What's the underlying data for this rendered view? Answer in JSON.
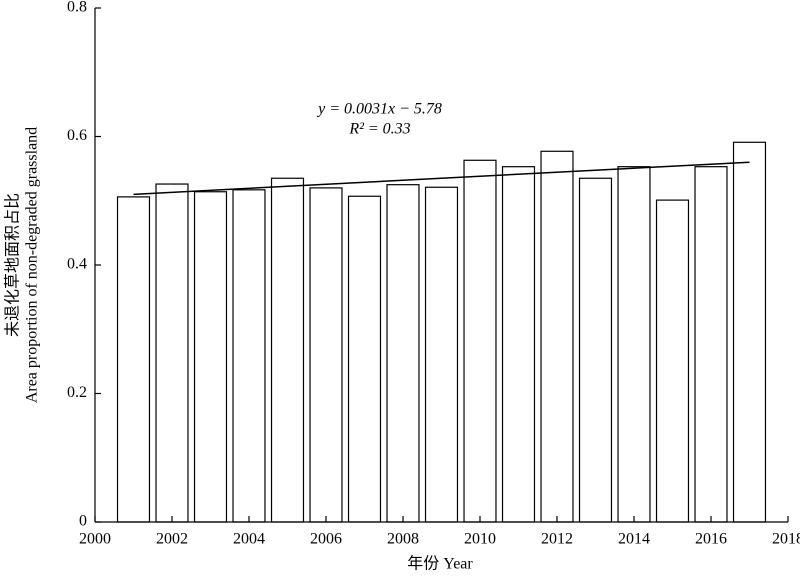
{
  "chart_data": {
    "type": "bar",
    "x": [
      2001,
      2002,
      2003,
      2004,
      2005,
      2006,
      2007,
      2008,
      2009,
      2010,
      2011,
      2012,
      2013,
      2014,
      2015,
      2016,
      2017
    ],
    "values": [
      0.506,
      0.526,
      0.514,
      0.517,
      0.535,
      0.52,
      0.507,
      0.525,
      0.521,
      0.563,
      0.553,
      0.577,
      0.535,
      0.553,
      0.501,
      0.553,
      0.591
    ],
    "color": "#ffffff",
    "edgecolor": "#000000",
    "trend": {
      "x": [
        2001,
        2017
      ],
      "values": [
        0.51,
        0.56
      ]
    },
    "annotations": [
      "y = 0.0031x − 5.78",
      "R² = 0.33"
    ],
    "xlabel": "年份 Year",
    "ylabel": [
      "未退化草地面积占比",
      "Area proportion of non-degraded grassland"
    ],
    "xlim": [
      2000,
      2018
    ],
    "xticks": [
      2000,
      2002,
      2004,
      2006,
      2008,
      2010,
      2012,
      2014,
      2016,
      2018
    ],
    "ylim": [
      0,
      0.8
    ],
    "yticks": [
      0,
      0.2,
      0.4,
      0.6,
      0.8
    ],
    "grid": false
  }
}
